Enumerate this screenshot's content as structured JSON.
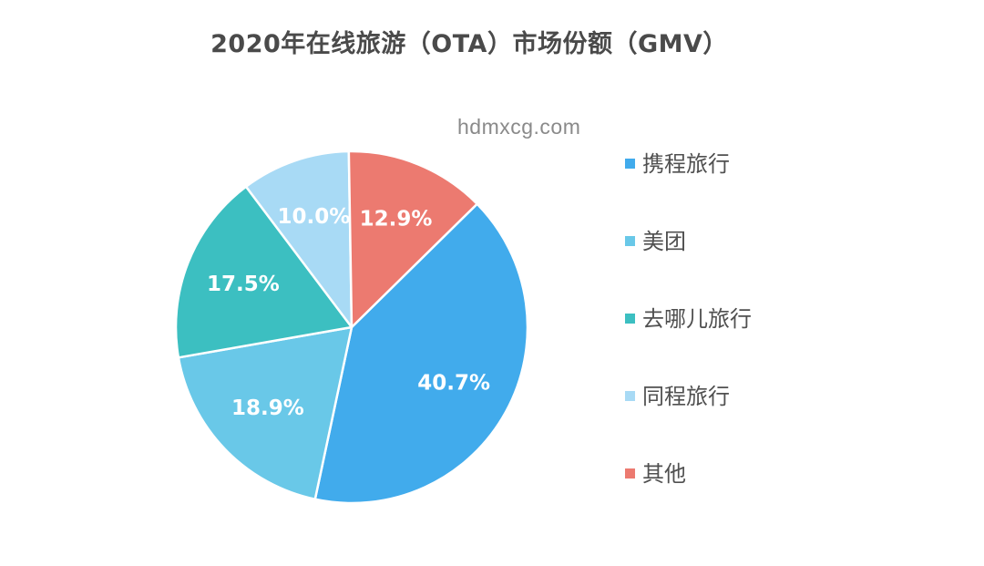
{
  "title": "2020年在线旅游（OTA）市场份额（GMV）",
  "watermark": "hdmxcg.com",
  "chart_data": {
    "type": "pie",
    "title": "2020年在线旅游（OTA）市场份额（GMV）",
    "legend_position": "right",
    "slices": [
      {
        "name": "携程旅行",
        "value": 40.7,
        "label": "40.7%",
        "color": "#41abec"
      },
      {
        "name": "美团",
        "value": 18.9,
        "label": "18.9%",
        "color": "#69c8e8"
      },
      {
        "name": "去哪儿旅行",
        "value": 17.5,
        "label": "17.5%",
        "color": "#3cbfc1"
      },
      {
        "name": "同程旅行",
        "value": 10.0,
        "label": "10.0%",
        "color": "#a8daf5"
      },
      {
        "name": "其他",
        "value": 12.9,
        "label": "12.9%",
        "color": "#ec7a70"
      }
    ]
  }
}
